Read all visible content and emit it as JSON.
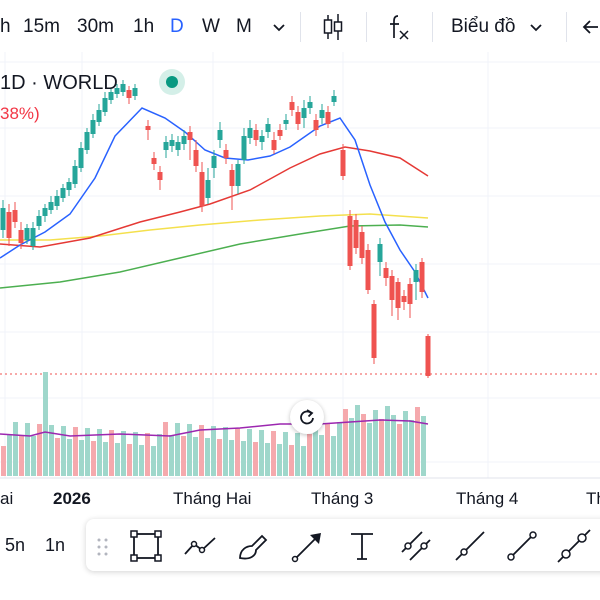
{
  "header": {
    "timeframes": [
      {
        "label": "h",
        "active": false
      },
      {
        "label": "15m",
        "active": false
      },
      {
        "label": "30m",
        "active": false
      },
      {
        "label": "1h",
        "active": false
      },
      {
        "label": "D",
        "active": true
      },
      {
        "label": "W",
        "active": false
      },
      {
        "label": "M",
        "active": false
      }
    ],
    "chart_type_label": "Biểu đồ",
    "icons": [
      "chevron-down-icon",
      "candlestick-icon",
      "indicators-fx-icon",
      "back-arrow-icon"
    ]
  },
  "legend": {
    "title": "1D · WORLD",
    "change": "38%)"
  },
  "x_axis_labels": [
    "ai",
    "2026",
    "Tháng Hai",
    "Tháng 3",
    "Tháng 4",
    "Th"
  ],
  "bottom": {
    "timeframes": [
      "5n",
      "1n"
    ],
    "tools": [
      "rectangle-tool-icon",
      "path-tool-icon",
      "brush-tool-icon",
      "arrow-tool-icon",
      "text-tool-icon",
      "parallel-channel-icon",
      "ray-tool-icon",
      "trend-line-icon",
      "extended-line-icon"
    ]
  },
  "colors": {
    "up": "#26a69a",
    "down": "#ef5350",
    "volume_up": "#9fd7cb",
    "volume_down": "#f5a9ad",
    "ma_blue": "#2962ff",
    "ma_red": "#e53935",
    "ma_yellow": "#f4e04d",
    "ma_green": "#4caf50",
    "vol_ma": "#9c27b0",
    "active": "#2962ff"
  }
}
